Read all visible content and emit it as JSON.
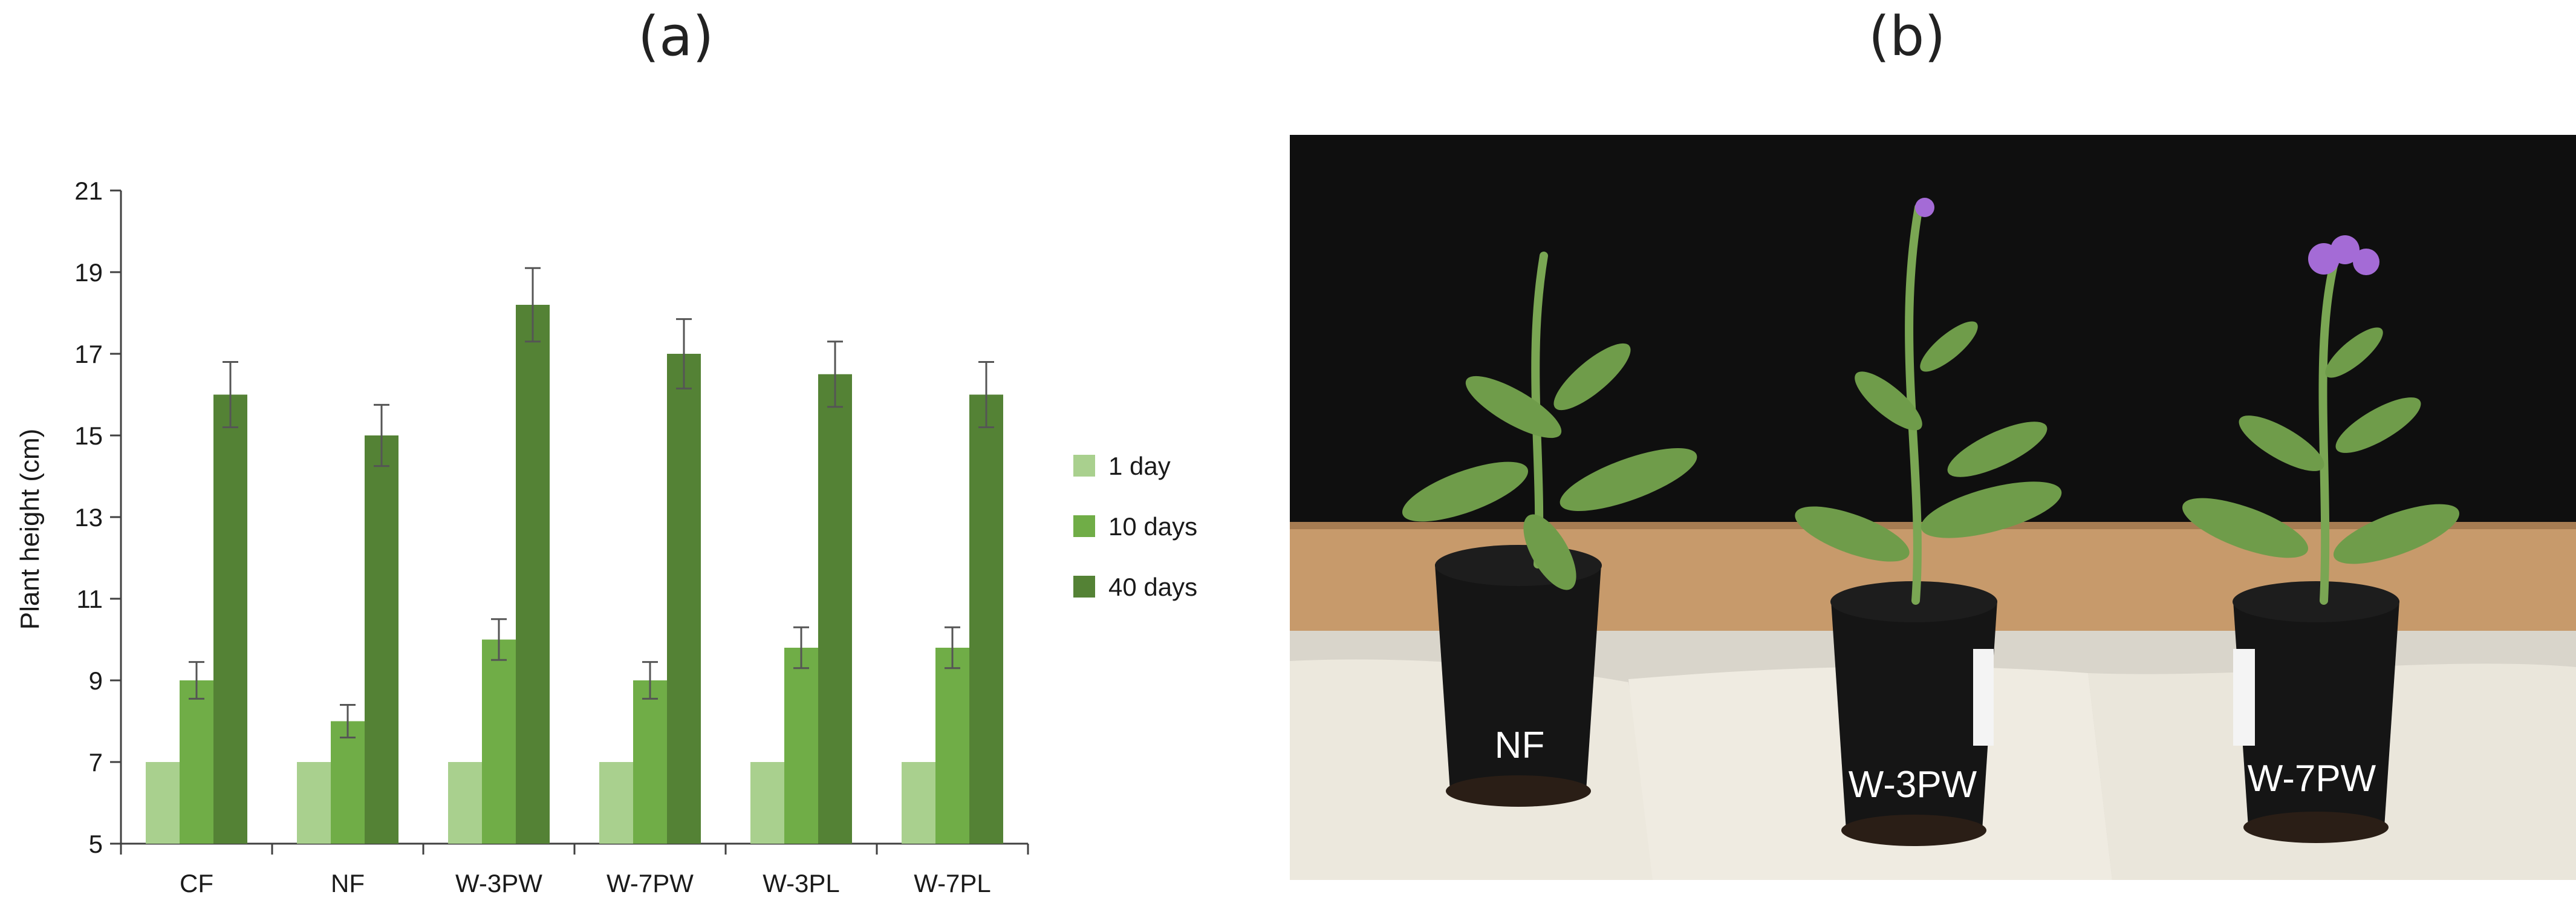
{
  "panels": {
    "a_label": "(a)",
    "b_label": "(b)"
  },
  "chart_data": {
    "type": "bar",
    "title": "",
    "xlabel": "",
    "ylabel": "Plant height (cm)",
    "ylim": [
      5,
      21
    ],
    "yticks": [
      5,
      7,
      9,
      11,
      13,
      15,
      17,
      19,
      21
    ],
    "categories": [
      "CF",
      "NF",
      "W-3PW",
      "W-7PW",
      "W-3PL",
      "W-7PL"
    ],
    "series": [
      {
        "name": "1 day",
        "color": "#a9d08e",
        "values": [
          7,
          7,
          7,
          7,
          7,
          7
        ],
        "errors": [
          0,
          0,
          0,
          0,
          0,
          0
        ]
      },
      {
        "name": "10 days",
        "color": "#70ad47",
        "values": [
          9,
          8,
          10,
          9,
          9.8,
          9.8
        ],
        "errors": [
          0.45,
          0.4,
          0.5,
          0.45,
          0.5,
          0.5
        ]
      },
      {
        "name": "40 days",
        "color": "#548235",
        "values": [
          16,
          15,
          18.2,
          17,
          16.5,
          16
        ],
        "errors": [
          0.8,
          0.75,
          0.9,
          0.85,
          0.8,
          0.8
        ]
      }
    ],
    "grid": false,
    "legend_position": "right"
  },
  "photo": {
    "pot_labels": [
      "NF",
      "W-3PW",
      "W-7PW"
    ],
    "colors": {
      "wall": "#0d0d0d",
      "board": "#c89a6a",
      "pot": "#141414",
      "foliage": "#6f9c4a",
      "cloth": "#ece8dd",
      "flower": "#a46bd6"
    }
  }
}
